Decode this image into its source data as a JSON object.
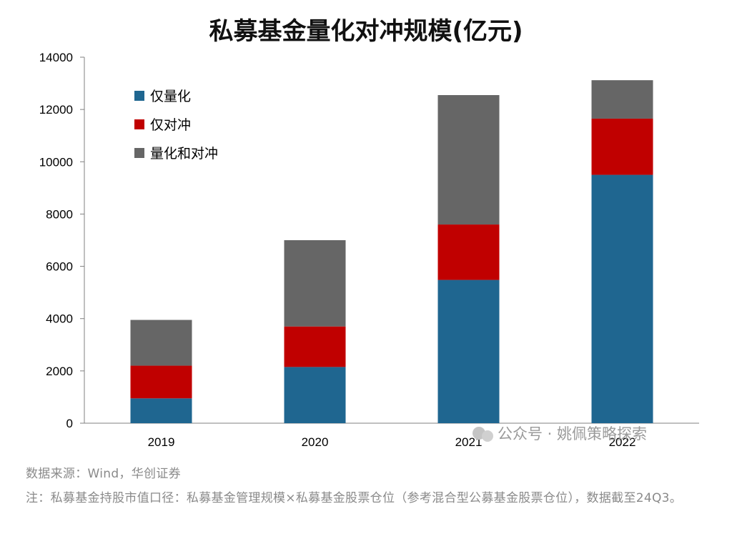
{
  "watermark": "公众号 · 姚佩策略探索",
  "source_text": "数据来源：Wind，华创证券",
  "footnote_text": "注：私募基金持股市值口径：私募基金管理规模×私募基金股票仓位（参考混合型公募基金股票仓位），数据截至24Q3。",
  "colors": {
    "series_0": "#1f6690",
    "series_1": "#c00000",
    "series_2": "#666666"
  },
  "chart_data": {
    "type": "bar",
    "stacked": true,
    "title": "私募基金量化对冲规模(亿元)",
    "xlabel": "",
    "ylabel": "",
    "categories": [
      "2019",
      "2020",
      "2021",
      "2022"
    ],
    "ylim": [
      0,
      14000
    ],
    "yticks": [
      0,
      2000,
      4000,
      6000,
      8000,
      10000,
      12000,
      14000
    ],
    "grid": false,
    "legend_position": "top-left",
    "series": [
      {
        "name": "仅量化",
        "values": [
          950,
          2150,
          5480,
          9500
        ]
      },
      {
        "name": "仅对冲",
        "values": [
          1250,
          1550,
          2120,
          2150
        ]
      },
      {
        "name": "量化和对冲",
        "values": [
          1750,
          3300,
          4950,
          1470
        ]
      }
    ]
  }
}
